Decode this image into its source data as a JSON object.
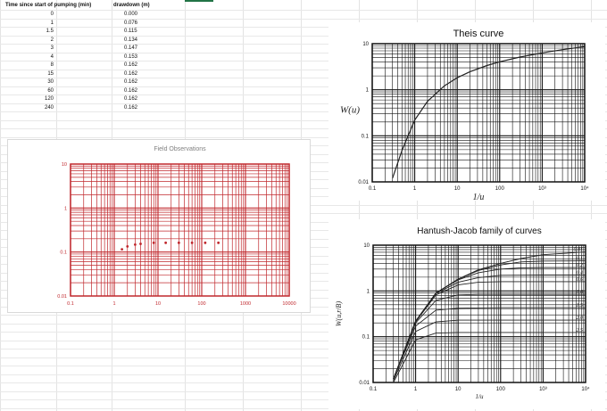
{
  "sheet": {
    "headers": {
      "time": "Time since start of pumping (min)",
      "drawdown": "drawdown (m)"
    },
    "rows": [
      {
        "time": "0",
        "drawdown": "0.000"
      },
      {
        "time": "1",
        "drawdown": "0.076"
      },
      {
        "time": "1.5",
        "drawdown": "0.115"
      },
      {
        "time": "2",
        "drawdown": "0.134"
      },
      {
        "time": "3",
        "drawdown": "0.147"
      },
      {
        "time": "4",
        "drawdown": "0.153"
      },
      {
        "time": "8",
        "drawdown": "0.162"
      },
      {
        "time": "15",
        "drawdown": "0.162"
      },
      {
        "time": "30",
        "drawdown": "0.162"
      },
      {
        "time": "60",
        "drawdown": "0.162"
      },
      {
        "time": "120",
        "drawdown": "0.162"
      },
      {
        "time": "240",
        "drawdown": "0.162"
      }
    ]
  },
  "chart_data": [
    {
      "type": "scatter",
      "title": "Field Observations",
      "xlabel": "",
      "ylabel": "",
      "xscale": "log",
      "yscale": "log",
      "xlim": [
        0.1,
        10000
      ],
      "ylim": [
        0.01,
        10
      ],
      "x_ticks": [
        "0.1",
        "1",
        "10",
        "100",
        "1000",
        "10000"
      ],
      "y_ticks": [
        "10",
        "1",
        "0.1",
        "0.01"
      ],
      "grid": true,
      "color": "#c0282d",
      "series": [
        {
          "x": [
            1.5,
            2,
            3,
            4,
            8,
            15,
            30,
            60,
            120,
            240
          ],
          "y": [
            0.115,
            0.134,
            0.147,
            0.153,
            0.162,
            0.162,
            0.162,
            0.162,
            0.162,
            0.162
          ]
        }
      ]
    },
    {
      "type": "line",
      "title": "Theis curve",
      "xlabel": "1/u",
      "ylabel": "W(u)",
      "xscale": "log",
      "yscale": "log",
      "xlim": [
        0.1,
        10000
      ],
      "ylim": [
        0.01,
        10
      ],
      "x_ticks": [
        "0.1",
        "1",
        "10",
        "100",
        "10³",
        "10⁴"
      ],
      "y_ticks": [
        "10",
        "1",
        "0.1",
        "0.01"
      ],
      "grid": true,
      "color": "#222222",
      "series": [
        {
          "x": [
            0.3,
            0.5,
            1,
            2,
            5,
            10,
            20,
            50,
            100,
            300,
            1000,
            3000,
            10000
          ],
          "y": [
            0.012,
            0.048,
            0.219,
            0.56,
            1.22,
            1.82,
            2.47,
            3.35,
            4.04,
            5.12,
            6.33,
            7.43,
            8.63
          ]
        }
      ]
    },
    {
      "type": "line",
      "title": "Hantush-Jacob family of curves",
      "xlabel": "1/u",
      "ylabel": "W(u,r/B)",
      "xscale": "log",
      "yscale": "log",
      "xlim": [
        0.1,
        10000
      ],
      "ylim": [
        0.01,
        10
      ],
      "x_ticks": [
        "0.1",
        "1",
        "10",
        "100",
        "10³",
        "10⁴"
      ],
      "y_ticks": [
        "10",
        "1",
        "0.1",
        "0.01"
      ],
      "grid": true,
      "color": "#222222",
      "series": [
        {
          "name": "0.01",
          "x": [
            0.3,
            1,
            3,
            10,
            30,
            100,
            300,
            1000,
            10000
          ],
          "y": [
            0.012,
            0.219,
            0.9,
            1.82,
            2.9,
            4.0,
            5.1,
            6.2,
            7.1
          ]
        },
        {
          "name": "0.1",
          "x": [
            0.3,
            1,
            3,
            10,
            30,
            100,
            300,
            1000,
            10000
          ],
          "y": [
            0.012,
            0.219,
            0.9,
            1.8,
            2.8,
            3.7,
            4.3,
            4.5,
            4.55
          ]
        },
        {
          "name": "0.2",
          "x": [
            0.3,
            1,
            3,
            10,
            30,
            100,
            300,
            1000,
            10000
          ],
          "y": [
            0.012,
            0.219,
            0.9,
            1.75,
            2.5,
            3.0,
            3.2,
            3.25,
            3.25
          ]
        },
        {
          "name": "0.4",
          "x": [
            0.3,
            1,
            3,
            10,
            30,
            100,
            1000,
            10000
          ],
          "y": [
            0.012,
            0.219,
            0.88,
            1.55,
            1.95,
            2.2,
            2.23,
            2.23
          ]
        },
        {
          "name": "0.6",
          "x": [
            0.3,
            1,
            3,
            10,
            30,
            100,
            1000,
            10000
          ],
          "y": [
            0.012,
            0.21,
            0.82,
            1.35,
            1.55,
            1.6,
            1.6,
            1.6
          ]
        },
        {
          "name": "1.0",
          "x": [
            0.3,
            1,
            3,
            10,
            30,
            100,
            10000
          ],
          "y": [
            0.012,
            0.2,
            0.62,
            0.82,
            0.84,
            0.84,
            0.84
          ]
        },
        {
          "name": "1.5",
          "x": [
            0.3,
            1,
            3,
            10,
            100,
            10000
          ],
          "y": [
            0.012,
            0.17,
            0.38,
            0.42,
            0.43,
            0.43
          ]
        },
        {
          "name": "2.0",
          "x": [
            0.3,
            1,
            3,
            10,
            100,
            10000
          ],
          "y": [
            0.011,
            0.13,
            0.21,
            0.23,
            0.23,
            0.23
          ]
        },
        {
          "name": "2.5",
          "x": [
            0.3,
            1,
            3,
            10,
            100,
            10000
          ],
          "y": [
            0.01,
            0.085,
            0.12,
            0.124,
            0.124,
            0.124
          ]
        }
      ]
    }
  ]
}
